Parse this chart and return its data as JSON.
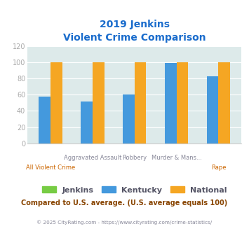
{
  "title_line1": "2019 Jenkins",
  "title_line2": "Violent Crime Comparison",
  "categories": [
    "All Violent Crime",
    "Aggravated Assault",
    "Robbery",
    "Murder & Mans...",
    "Rape"
  ],
  "x_labels_top": [
    "",
    "Aggravated Assault",
    "Robbery",
    "Murder & Mans...",
    ""
  ],
  "x_labels_bot": [
    "All Violent Crime",
    "",
    "",
    "",
    "Rape"
  ],
  "jenkins": [
    0,
    0,
    0,
    0,
    0
  ],
  "kentucky": [
    58,
    52,
    60,
    99,
    83
  ],
  "national": [
    100,
    100,
    100,
    100,
    100
  ],
  "jenkins_color": "#77cc44",
  "kentucky_color": "#4499dd",
  "national_color": "#f5a623",
  "ylim": [
    0,
    120
  ],
  "yticks": [
    0,
    20,
    40,
    60,
    80,
    100,
    120
  ],
  "title_color": "#1a6ccc",
  "footer_text": "Compared to U.S. average. (U.S. average equals 100)",
  "footer_color": "#884400",
  "copyright_text": "© 2025 CityRating.com - https://www.cityrating.com/crime-statistics/",
  "copyright_color": "#888899",
  "legend_labels": [
    "Jenkins",
    "Kentucky",
    "National"
  ],
  "legend_text_color": "#555566",
  "bar_width": 0.28,
  "grid_color": "#ffffff",
  "axis_bg": "#ddeaea",
  "tick_color": "#aaaaaa",
  "xlabel_top_color": "#888899",
  "xlabel_bot_color": "#cc6600"
}
